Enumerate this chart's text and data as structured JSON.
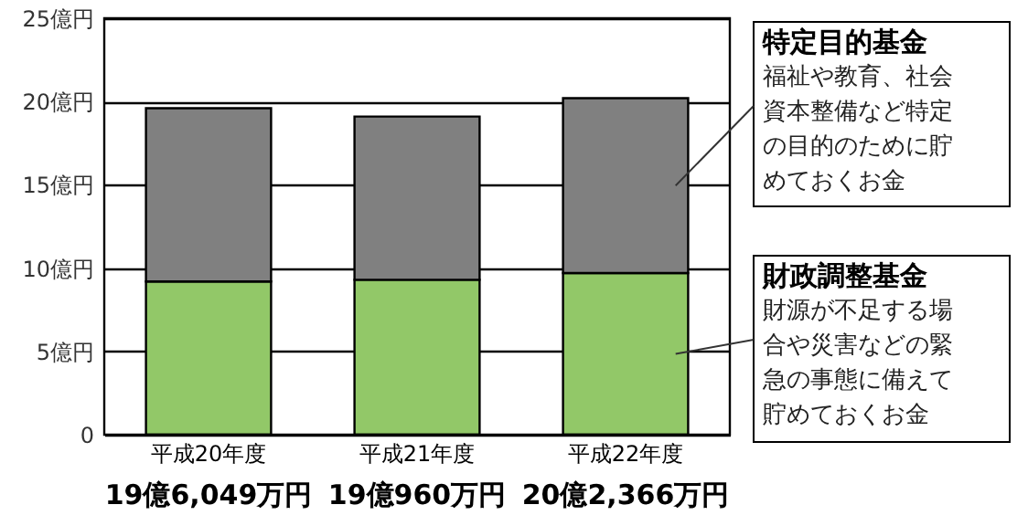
{
  "chart_data": {
    "type": "bar",
    "stacked": true,
    "categories": [
      "平成20年度",
      "平成21年度",
      "平成22年度"
    ],
    "series": [
      {
        "name": "財政調整基金",
        "color": "#92c868",
        "values": [
          9.2,
          9.3,
          9.7
        ]
      },
      {
        "name": "特定目的基金",
        "color": "#808080",
        "values": [
          10.4,
          9.8,
          10.5
        ]
      }
    ],
    "totals": [
      "19億6,049万円",
      "19億960万円",
      "20億2,366万円"
    ],
    "annotations": [
      "福祉や教育、社会資本整備など特定の目的のために貯めておくお金",
      "財源が不足する場合や災害などの緊急の事態に備えて貯めておくお金"
    ],
    "ylim": [
      0,
      25
    ],
    "yticks": [
      0,
      {
        "value": 5,
        "label": "5億円"
      },
      {
        "value": 10,
        "label": "10億円"
      },
      {
        "value": 15,
        "label": "15億円"
      },
      {
        "value": 20,
        "label": "20億円"
      },
      {
        "value": 25,
        "label": "25億円"
      }
    ],
    "grid": "y"
  }
}
